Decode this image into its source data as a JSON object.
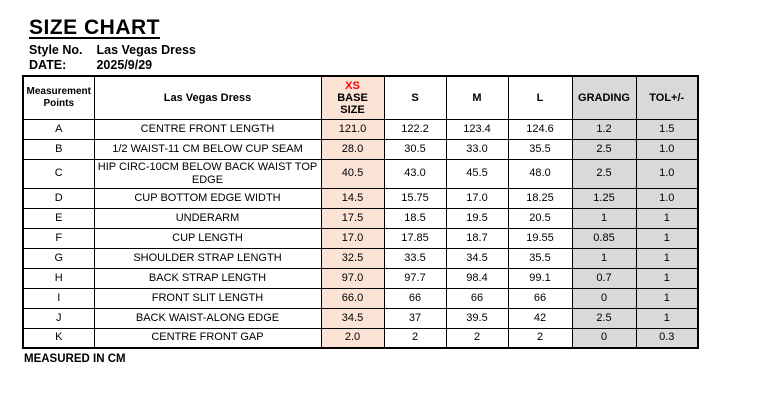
{
  "page": {
    "title": "SIZE CHART",
    "style_no_label": "Style No.",
    "style_no_value": "Las Vegas Dress",
    "date_label": "DATE:",
    "date_value": "2025/9/29",
    "footer_note": "MEASURED IN CM"
  },
  "colors": {
    "base_size_fill": "#fbe3d5",
    "base_size_text": "#ff0000",
    "grading_fill": "#d9d9d9",
    "border": "#000000"
  },
  "table": {
    "headers": {
      "measurement_points": "Measurement Points",
      "product": "Las Vegas Dress",
      "base_size_line1": "XS",
      "base_size_line2": "BASE SIZE",
      "s": "S",
      "m": "M",
      "l": "L",
      "grading": "GRADING",
      "tol": "TOL+/-"
    },
    "rows": [
      {
        "point": "A",
        "name": "CENTRE FRONT LENGTH",
        "values": [
          "121.0",
          "122.2",
          "123.4",
          "124.6",
          "1.2",
          "1.5"
        ]
      },
      {
        "point": "B",
        "name": "1/2 WAIST-11 CM BELOW CUP SEAM",
        "values": [
          "28.0",
          "30.5",
          "33.0",
          "35.5",
          "2.5",
          "1.0"
        ]
      },
      {
        "point": "C",
        "name": "HIP CIRC-10CM BELOW BACK WAIST TOP EDGE",
        "values": [
          "40.5",
          "43.0",
          "45.5",
          "48.0",
          "2.5",
          "1.0"
        ]
      },
      {
        "point": "D",
        "name": "CUP BOTTOM EDGE WIDTH",
        "values": [
          "14.5",
          "15.75",
          "17.0",
          "18.25",
          "1.25",
          "1.0"
        ]
      },
      {
        "point": "E",
        "name": "UNDERARM",
        "values": [
          "17.5",
          "18.5",
          "19.5",
          "20.5",
          "1",
          "1"
        ]
      },
      {
        "point": "F",
        "name": "CUP LENGTH",
        "values": [
          "17.0",
          "17.85",
          "18.7",
          "19.55",
          "0.85",
          "1"
        ]
      },
      {
        "point": "G",
        "name": "SHOULDER STRAP LENGTH",
        "values": [
          "32.5",
          "33.5",
          "34.5",
          "35.5",
          "1",
          "1"
        ]
      },
      {
        "point": "H",
        "name": "BACK STRAP LENGTH",
        "values": [
          "97.0",
          "97.7",
          "98.4",
          "99.1",
          "0.7",
          "1"
        ]
      },
      {
        "point": "I",
        "name": "FRONT SLIT LENGTH",
        "values": [
          "66.0",
          "66",
          "66",
          "66",
          "0",
          "1"
        ]
      },
      {
        "point": "J",
        "name": "BACK WAIST-ALONG EDGE",
        "values": [
          "34.5",
          "37",
          "39.5",
          "42",
          "2.5",
          "1"
        ]
      },
      {
        "point": "K",
        "name": "CENTRE FRONT GAP",
        "values": [
          "2.0",
          "2",
          "2",
          "2",
          "0",
          "0.3"
        ]
      }
    ]
  }
}
